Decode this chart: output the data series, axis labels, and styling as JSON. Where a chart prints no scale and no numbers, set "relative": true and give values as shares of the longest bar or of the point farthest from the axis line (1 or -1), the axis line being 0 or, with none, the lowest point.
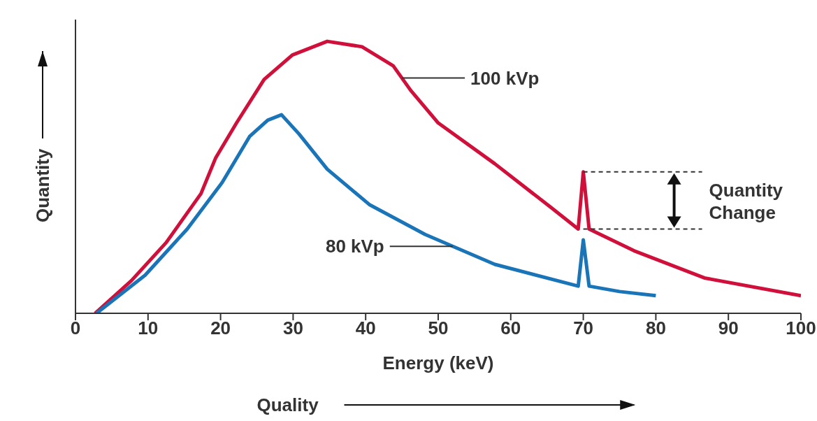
{
  "chart_data": {
    "type": "line",
    "relative": true,
    "xlabel": "Energy (keV)",
    "ylabel": "Quantity",
    "xlim": [
      0,
      100
    ],
    "xticks": [
      0,
      10,
      20,
      30,
      40,
      50,
      60,
      70,
      80,
      90,
      100
    ],
    "grid": false,
    "legend": false,
    "marker": "none",
    "line_style": "solid",
    "annotations": [
      "Quantity Change",
      "Quality"
    ],
    "series": [
      {
        "name": "100 kVp",
        "color": "#d0103a",
        "x": [
          2.7,
          7.7,
          12.5,
          17.3,
          19.3,
          22.2,
          26,
          29.9,
          34.7,
          39.5,
          43.8,
          46.2,
          50,
          57.8,
          65.5,
          69.3,
          70,
          70.8,
          77,
          86.7,
          100
        ],
        "values": [
          0,
          0.12,
          0.26,
          0.44,
          0.57,
          0.7,
          0.86,
          0.95,
          1,
          0.98,
          0.91,
          0.82,
          0.7,
          0.55,
          0.39,
          0.31,
          0.52,
          0.31,
          0.23,
          0.13,
          0.065
        ]
      },
      {
        "name": "80 kVp",
        "color": "#1a75b8",
        "x": [
          2.9,
          9.6,
          15.4,
          20.2,
          24,
          26.5,
          28.4,
          30.8,
          34.7,
          40.5,
          48.2,
          57.8,
          69.3,
          70,
          70.8,
          75,
          80
        ],
        "values": [
          0,
          0.14,
          0.31,
          0.48,
          0.65,
          0.71,
          0.73,
          0.66,
          0.53,
          0.4,
          0.29,
          0.18,
          0.1,
          0.27,
          0.1,
          0.08,
          0.065
        ]
      }
    ]
  }
}
